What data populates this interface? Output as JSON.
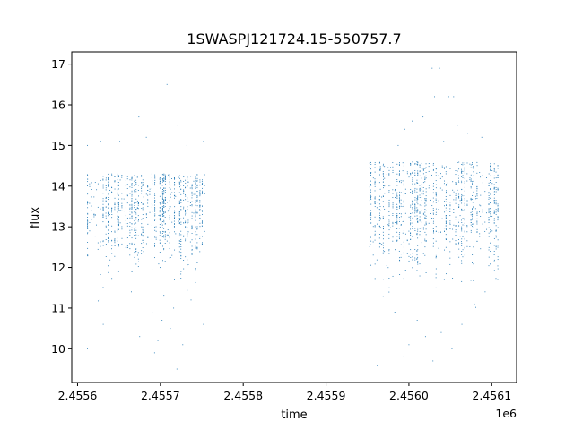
{
  "chart_data": {
    "type": "scatter",
    "title": "1SWASPJ121724.15-550757.7",
    "xlabel": "time",
    "ylabel": "flux",
    "x_offset_label": "1e6",
    "xlim": [
      2455593,
      2456130
    ],
    "ylim": [
      9.17,
      17.3
    ],
    "x_ticks": [
      2455600,
      2455700,
      2455800,
      2455900,
      2456000,
      2456100
    ],
    "x_tick_labels": [
      "2.4556",
      "2.4557",
      "2.4558",
      "2.4559",
      "2.4560",
      "2.4561"
    ],
    "y_ticks": [
      10,
      11,
      12,
      13,
      14,
      15,
      16,
      17
    ],
    "y_tick_labels": [
      "10",
      "11",
      "12",
      "13",
      "14",
      "15",
      "16",
      "17"
    ],
    "grid": false,
    "marker_color": "#1f77b4",
    "series": [
      {
        "segments": [
          {
            "x_start": 2455612,
            "x_end": 2455754,
            "y_core_low": 11.7,
            "y_core_high": 14.3
          },
          {
            "x_start": 2455953,
            "x_end": 2456108,
            "y_core_low": 11.5,
            "y_core_high": 14.6
          }
        ],
        "points": [
          [
            2455612,
            10.0
          ],
          [
            2455612,
            15.0
          ],
          [
            2455627,
            11.2
          ],
          [
            2455628,
            15.1
          ],
          [
            2455631,
            10.6
          ],
          [
            2455651,
            15.1
          ],
          [
            2455665,
            11.4
          ],
          [
            2455674,
            15.7
          ],
          [
            2455675,
            10.3
          ],
          [
            2455683,
            15.2
          ],
          [
            2455690,
            10.9
          ],
          [
            2455693,
            9.9
          ],
          [
            2455697,
            10.2
          ],
          [
            2455702,
            10.7
          ],
          [
            2455708,
            16.5
          ],
          [
            2455712,
            10.5
          ],
          [
            2455716,
            11.0
          ],
          [
            2455720,
            9.5
          ],
          [
            2455721,
            15.5
          ],
          [
            2455727,
            10.1
          ],
          [
            2455732,
            15.0
          ],
          [
            2455737,
            11.2
          ],
          [
            2455743,
            15.3
          ],
          [
            2455752,
            10.6
          ],
          [
            2455752,
            15.1
          ],
          [
            2455962,
            9.6
          ],
          [
            2455983,
            10.9
          ],
          [
            2455987,
            15.0
          ],
          [
            2455993,
            9.8
          ],
          [
            2455995,
            15.4
          ],
          [
            2456000,
            10.1
          ],
          [
            2456004,
            15.6
          ],
          [
            2456010,
            10.7
          ],
          [
            2456017,
            15.7
          ],
          [
            2456020,
            10.3
          ],
          [
            2456028,
            16.9
          ],
          [
            2456029,
            9.7
          ],
          [
            2456031,
            16.2
          ],
          [
            2456037,
            16.9
          ],
          [
            2456039,
            10.4
          ],
          [
            2456042,
            15.1
          ],
          [
            2456048,
            16.2
          ],
          [
            2456052,
            10.0
          ],
          [
            2456054,
            16.2
          ],
          [
            2456059,
            15.5
          ],
          [
            2456064,
            10.6
          ],
          [
            2456071,
            15.3
          ],
          [
            2456079,
            11.1
          ],
          [
            2456088,
            15.2
          ],
          [
            2456092,
            11.4
          ]
        ]
      }
    ]
  }
}
